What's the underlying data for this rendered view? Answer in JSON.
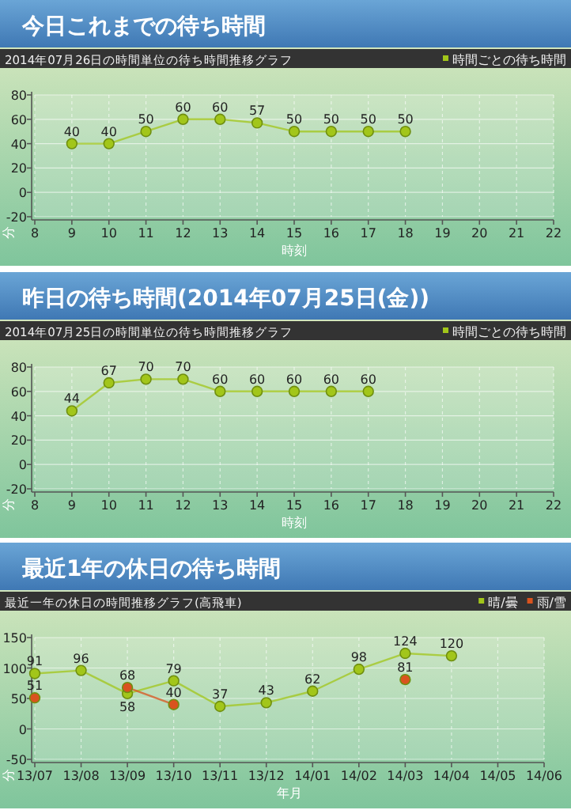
{
  "chart_data": [
    {
      "type": "line",
      "title": "今日これまでの待ち時間",
      "subtitle": "2014年07月26日の時間単位の待ち時間推移グラフ",
      "xlabel": "時刻",
      "ylabel": "分",
      "xlim": [
        8,
        22
      ],
      "xticks": [
        8,
        9,
        10,
        11,
        12,
        13,
        14,
        15,
        16,
        17,
        18,
        19,
        20,
        21,
        22
      ],
      "ylim": [
        -20,
        80
      ],
      "yticks": [
        -20,
        0,
        20,
        40,
        60,
        80
      ],
      "grid": true,
      "legend": "top right",
      "marker": "circle",
      "data_labels": true,
      "series": [
        {
          "name": "時間ごとの待ち時間",
          "color": "#a2c61a",
          "x": [
            9,
            10,
            11,
            12,
            13,
            14,
            15,
            16,
            17,
            18
          ],
          "values": [
            40,
            40,
            50,
            60,
            60,
            57,
            50,
            50,
            50,
            50
          ]
        }
      ]
    },
    {
      "type": "line",
      "title": "昨日の待ち時間(2014年07月25日(金))",
      "subtitle": "2014年07月25日の時間単位の待ち時間推移グラフ",
      "xlabel": "時刻",
      "ylabel": "分",
      "xlim": [
        8,
        22
      ],
      "xticks": [
        8,
        9,
        10,
        11,
        12,
        13,
        14,
        15,
        16,
        17,
        18,
        19,
        20,
        21,
        22
      ],
      "ylim": [
        -20,
        80
      ],
      "yticks": [
        -20,
        0,
        20,
        40,
        60,
        80
      ],
      "grid": true,
      "legend": "top right",
      "marker": "circle",
      "data_labels": true,
      "series": [
        {
          "name": "時間ごとの待ち時間",
          "color": "#a2c61a",
          "x": [
            9,
            10,
            11,
            12,
            13,
            14,
            15,
            16,
            17
          ],
          "values": [
            44,
            67,
            70,
            70,
            60,
            60,
            60,
            60,
            60
          ]
        }
      ]
    },
    {
      "type": "line",
      "title": "最近1年の休日の待ち時間",
      "subtitle": "最近一年の休日の時間推移グラフ(高飛車)",
      "xlabel": "年月",
      "ylabel": "分",
      "categories": [
        "13/07",
        "13/08",
        "13/09",
        "13/10",
        "13/11",
        "13/12",
        "14/01",
        "14/02",
        "14/03",
        "14/04",
        "14/05",
        "14/06"
      ],
      "ylim": [
        -50,
        150
      ],
      "yticks": [
        -50,
        0,
        50,
        100,
        150
      ],
      "grid": true,
      "legend": "top right",
      "marker": "circle",
      "data_labels": true,
      "series": [
        {
          "name": "晴/曇",
          "color": "#a2c61a",
          "values": [
            91,
            96,
            58,
            79,
            37,
            43,
            62,
            98,
            124,
            120,
            null,
            null
          ]
        },
        {
          "name": "雨/雪",
          "color": "#d9531e",
          "values": [
            51,
            null,
            68,
            40,
            null,
            null,
            null,
            null,
            81,
            null,
            null,
            null
          ]
        }
      ]
    }
  ]
}
